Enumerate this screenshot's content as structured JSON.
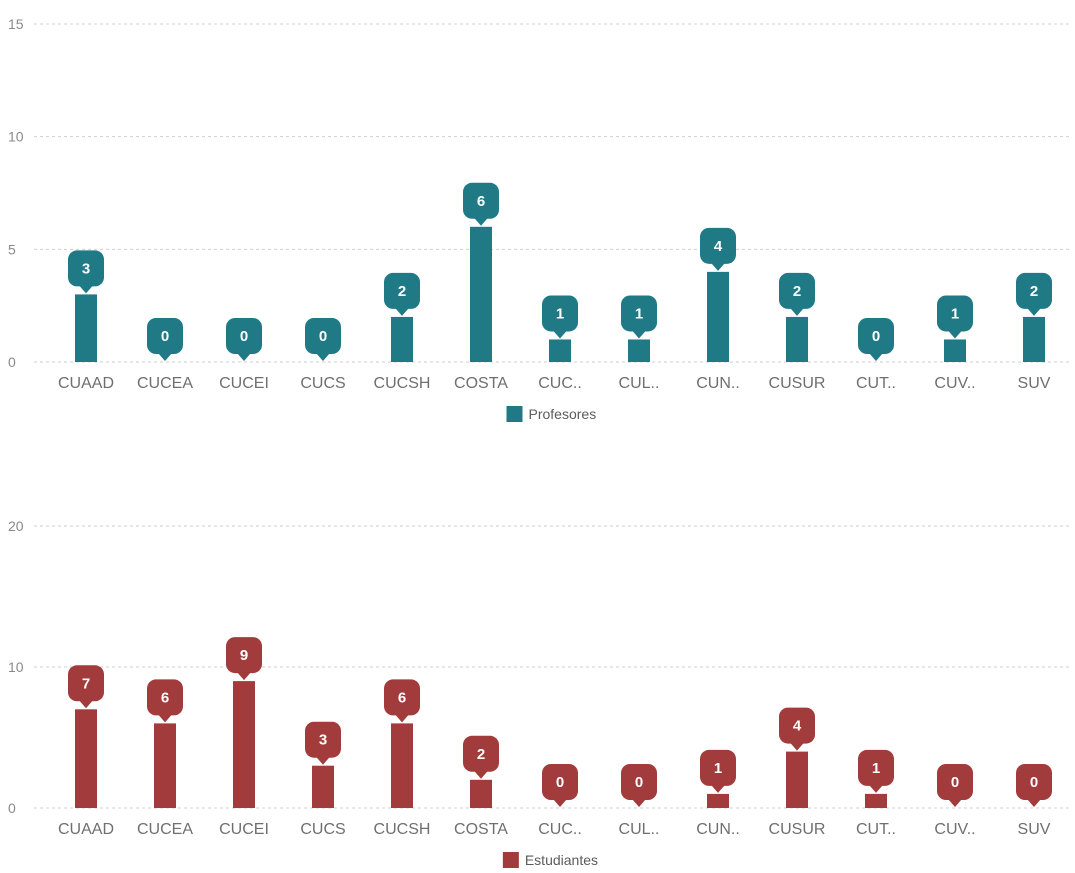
{
  "chart_data": [
    {
      "type": "bar",
      "categories": [
        "CUAAD",
        "CUCEA",
        "CUCEI",
        "CUCS",
        "CUCSH",
        "COSTA",
        "CUC..",
        "CUL..",
        "CUN..",
        "CUSUR",
        "CUT..",
        "CUV..",
        "SUV"
      ],
      "series": [
        {
          "name": "Profesores",
          "values": [
            3,
            0,
            0,
            0,
            2,
            6,
            1,
            1,
            4,
            2,
            0,
            1,
            2
          ],
          "color": "#1f7a86"
        }
      ],
      "yticks": [
        0,
        5,
        10,
        15
      ],
      "ylim": [
        0,
        15
      ],
      "grid": true,
      "data_labels": true,
      "legend": "bottom-center"
    },
    {
      "type": "bar",
      "categories": [
        "CUAAD",
        "CUCEA",
        "CUCEI",
        "CUCS",
        "CUCSH",
        "COSTA",
        "CUC..",
        "CUL..",
        "CUN..",
        "CUSUR",
        "CUT..",
        "CUV..",
        "SUV"
      ],
      "series": [
        {
          "name": "Estudiantes",
          "values": [
            7,
            6,
            9,
            3,
            6,
            2,
            0,
            0,
            1,
            4,
            1,
            0,
            0
          ],
          "color": "#a23b3b"
        }
      ],
      "yticks": [
        0,
        10,
        20
      ],
      "ylim": [
        0,
        20
      ],
      "grid": true,
      "data_labels": true,
      "legend": "bottom-center"
    }
  ]
}
